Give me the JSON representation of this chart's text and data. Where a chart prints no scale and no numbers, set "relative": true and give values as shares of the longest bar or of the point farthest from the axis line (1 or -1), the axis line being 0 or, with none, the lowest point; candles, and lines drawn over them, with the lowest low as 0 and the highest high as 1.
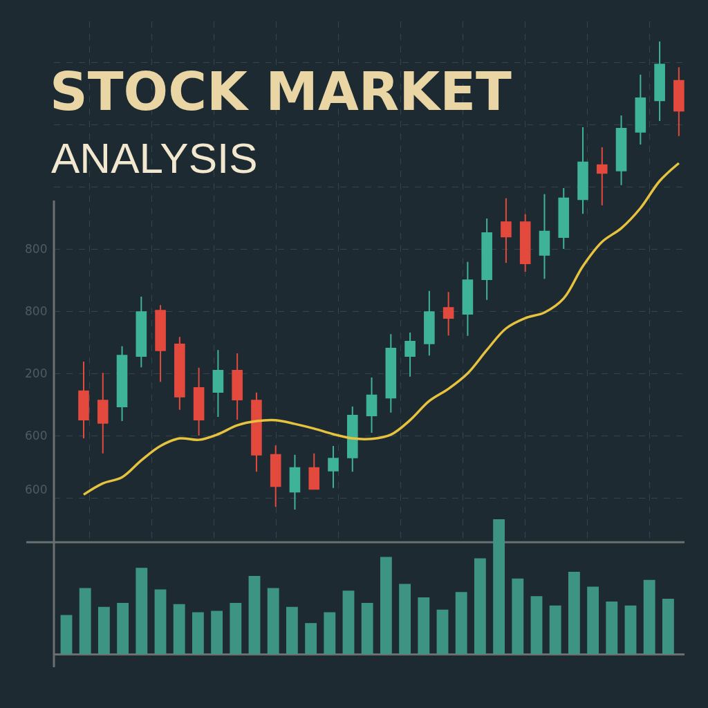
{
  "chart_data": [
    {
      "type": "candlestick",
      "title": "STOCK MARKET",
      "subtitle": "ANALYSIS",
      "relative": true,
      "grid": true,
      "tick_labels": false,
      "annotations": [
        "800",
        "800",
        "200",
        "600",
        "600"
      ],
      "categories": [
        null,
        null,
        null,
        null,
        null,
        null,
        null,
        null,
        null,
        null,
        null,
        null,
        null,
        null,
        null,
        null,
        null,
        null,
        null,
        null,
        null,
        null,
        null,
        null,
        null,
        null,
        null,
        null,
        null,
        null,
        null,
        null
      ],
      "ohlc": [
        [
          0.253,
          0.316,
          0.152,
          0.192
        ],
        [
          0.233,
          0.292,
          0.12,
          0.185
        ],
        [
          0.22,
          0.349,
          0.189,
          0.329
        ],
        [
          0.328,
          0.455,
          0.304,
          0.422
        ],
        [
          0.425,
          0.437,
          0.273,
          0.34
        ],
        [
          0.353,
          0.369,
          0.213,
          0.241
        ],
        [
          0.26,
          0.303,
          0.158,
          0.192
        ],
        [
          0.251,
          0.341,
          0.198,
          0.297
        ],
        [
          0.297,
          0.334,
          0.192,
          0.235
        ],
        [
          0.233,
          0.25,
          0.081,
          0.117
        ],
        [
          0.117,
          0.137,
          0.006,
          0.05
        ],
        [
          0.038,
          0.117,
          0.0,
          0.089
        ],
        [
          0.089,
          0.12,
          0.044,
          0.044
        ],
        [
          0.083,
          0.136,
          0.046,
          0.109
        ],
        [
          0.111,
          0.22,
          0.081,
          0.201
        ],
        [
          0.201,
          0.282,
          0.164,
          0.244
        ],
        [
          0.239,
          0.375,
          0.207,
          0.344
        ],
        [
          0.328,
          0.378,
          0.284,
          0.359
        ],
        [
          0.355,
          0.467,
          0.329,
          0.422
        ],
        [
          0.431,
          0.465,
          0.372,
          0.409
        ],
        [
          0.418,
          0.529,
          0.371,
          0.49
        ],
        [
          0.492,
          0.622,
          0.448,
          0.591
        ],
        [
          0.614,
          0.665,
          0.527,
          0.583
        ],
        [
          0.614,
          0.631,
          0.508,
          0.526
        ],
        [
          0.544,
          0.674,
          0.493,
          0.594
        ],
        [
          0.582,
          0.687,
          0.557,
          0.665
        ],
        [
          0.663,
          0.817,
          0.632,
          0.742
        ],
        [
          0.736,
          0.774,
          0.65,
          0.719
        ],
        [
          0.724,
          0.842,
          0.693,
          0.814
        ],
        [
          0.807,
          0.929,
          0.78,
          0.879
        ],
        [
          0.874,
          1.0,
          0.83,
          0.951
        ],
        [
          0.916,
          0.945,
          0.798,
          0.852
        ]
      ],
      "colors": [
        "#e3493c",
        "#e3493c",
        "#3fb398",
        "#3fb398",
        "#e3493c",
        "#e3493c",
        "#e3493c",
        "#3fb398",
        "#e3493c",
        "#e3493c",
        "#e3493c",
        "#3fb398",
        "#e3493c",
        "#3fb398",
        "#3fb398",
        "#3fb398",
        "#3fb398",
        "#3fb398",
        "#3fb398",
        "#e3493c",
        "#3fb398",
        "#3fb398",
        "#e3493c",
        "#e3493c",
        "#3fb398",
        "#3fb398",
        "#3fb398",
        "#e3493c",
        "#3fb398",
        "#3fb398",
        "#3fb398",
        "#e3493c"
      ],
      "series": [
        {
          "type": "line",
          "color": "#e6c23f",
          "values": [
            0.032,
            0.056,
            0.069,
            0.105,
            0.136,
            0.152,
            0.149,
            0.161,
            0.18,
            0.189,
            0.191,
            0.183,
            0.173,
            0.161,
            0.152,
            0.151,
            0.16,
            0.191,
            0.232,
            0.258,
            0.291,
            0.341,
            0.387,
            0.409,
            0.421,
            0.451,
            0.52,
            0.572,
            0.601,
            0.644,
            0.702,
            0.74
          ]
        }
      ]
    },
    {
      "type": "bar",
      "relative": true,
      "tick_labels": false,
      "color": "#3d9482",
      "ref_lines": [
        {
          "axis": "y",
          "value": 0.83,
          "color": "#6a6f70"
        }
      ],
      "categories": [
        null,
        null,
        null,
        null,
        null,
        null,
        null,
        null,
        null,
        null,
        null,
        null,
        null,
        null,
        null,
        null,
        null,
        null,
        null,
        null,
        null,
        null,
        null,
        null,
        null,
        null,
        null,
        null,
        null,
        null,
        null,
        null,
        null
      ],
      "values": [
        0.29,
        0.49,
        0.35,
        0.38,
        0.64,
        0.48,
        0.37,
        0.31,
        0.32,
        0.38,
        0.58,
        0.49,
        0.35,
        0.23,
        0.31,
        0.47,
        0.38,
        0.72,
        0.52,
        0.42,
        0.33,
        0.46,
        0.71,
        1,
        0.56,
        0.43,
        0.36,
        0.61,
        0.5,
        0.39,
        0.36,
        0.55,
        0.41
      ]
    }
  ]
}
